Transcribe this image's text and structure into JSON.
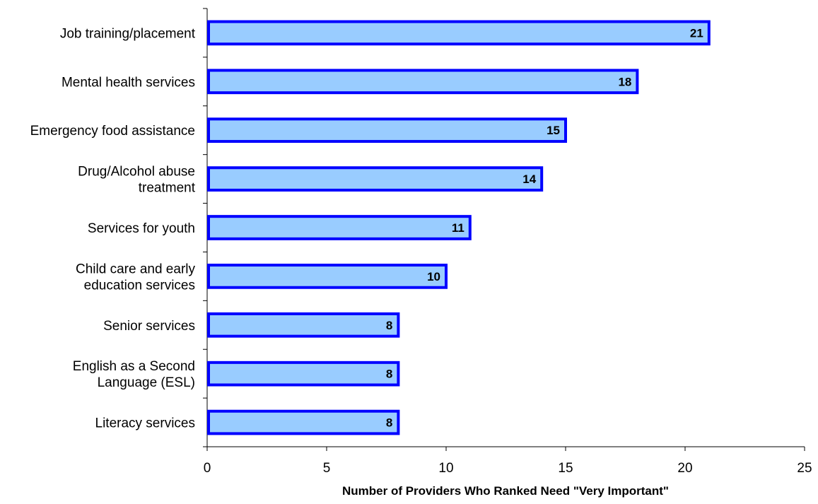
{
  "chart_data": {
    "type": "bar",
    "orientation": "horizontal",
    "title": "",
    "categories": [
      [
        "Job training/placement"
      ],
      [
        "Mental health services"
      ],
      [
        "Emergency food assistance"
      ],
      [
        "Drug/Alcohol abuse",
        "treatment"
      ],
      [
        "Services for youth"
      ],
      [
        "Child care and early",
        "education services"
      ],
      [
        "Senior services"
      ],
      [
        "English as a Second",
        "Language (ESL)"
      ],
      [
        "Literacy services"
      ]
    ],
    "values": [
      21,
      18,
      15,
      14,
      11,
      10,
      8,
      8,
      8
    ],
    "data_labels": [
      "21",
      "18",
      "15",
      "14",
      "11",
      "10",
      "8",
      "8",
      "8"
    ],
    "xlabel": "Number of Providers Who Ranked Need \"Very Important\"",
    "ylabel": "",
    "xlim": [
      0,
      25
    ],
    "xticks": [
      0,
      5,
      10,
      15,
      20,
      25
    ],
    "xtick_labels": [
      "0",
      "5",
      "10",
      "15",
      "20",
      "25"
    ],
    "grid": false,
    "legend": "none",
    "colors": {
      "bar_fill": "#99CCFF",
      "bar_border": "#0000FF",
      "axis": "#000000"
    }
  }
}
